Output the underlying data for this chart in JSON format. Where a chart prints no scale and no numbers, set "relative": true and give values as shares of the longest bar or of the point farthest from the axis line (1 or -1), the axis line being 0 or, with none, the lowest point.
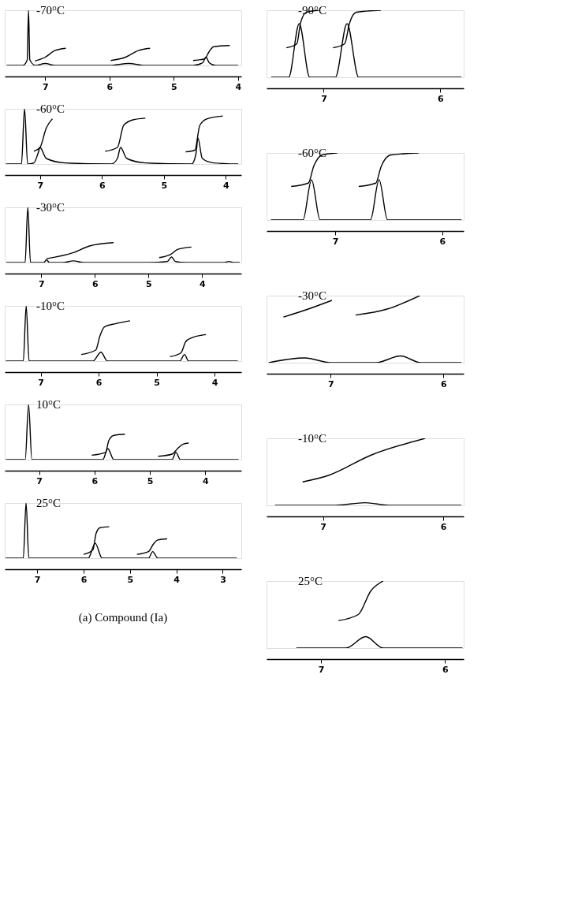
{
  "chart_data": [
    {
      "type": "line",
      "title": "-70°C",
      "relative": true,
      "xlim": [
        7.63,
        3.95
      ],
      "xticks": [
        7,
        6,
        5,
        4
      ],
      "grid": false,
      "legend": false,
      "line_style": "solid",
      "series": [
        {
          "color": "#000000",
          "x": [
            7.6,
            7.35,
            7.28,
            7.26,
            7.24,
            7.15,
            7.0,
            6.85,
            6.6,
            6.0,
            5.7,
            5.45,
            5.2,
            4.7,
            4.55,
            4.5,
            4.45,
            4.35,
            4.0
          ],
          "values": [
            0,
            0,
            0.1,
            1,
            0.1,
            0,
            0.035,
            0,
            0,
            0,
            0.035,
            0,
            0,
            0,
            0.05,
            0.15,
            0.05,
            0,
            0
          ]
        },
        {
          "color": "#000000",
          "x": [
            7.16,
            7.0,
            6.85,
            6.68
          ],
          "values": [
            0.08,
            0.15,
            0.27,
            0.31
          ]
        },
        {
          "color": "#000000",
          "x": [
            5.98,
            5.75,
            5.55,
            5.37
          ],
          "values": [
            0.09,
            0.15,
            0.27,
            0.31
          ]
        },
        {
          "color": "#000000",
          "x": [
            4.7,
            4.52,
            4.45,
            4.38,
            4.13
          ],
          "values": [
            0.09,
            0.12,
            0.25,
            0.34,
            0.36
          ]
        }
      ]
    },
    {
      "type": "line",
      "title": "-60°C",
      "relative": true,
      "xlim": [
        7.57,
        3.75
      ],
      "xticks": [
        7,
        6,
        5,
        4
      ],
      "grid": false,
      "legend": false,
      "line_style": "solid",
      "series": [
        {
          "color": "#000000",
          "x": [
            7.55,
            7.3,
            7.25,
            7.2,
            7.1,
            7.03,
            7.0,
            6.9,
            6.6,
            5.85,
            5.75,
            5.7,
            5.6,
            5.3,
            4.55,
            4.48,
            4.45,
            4.38,
            4.2,
            3.8
          ],
          "values": [
            0,
            0,
            1,
            0,
            0.02,
            0.2,
            0.3,
            0.1,
            0.02,
            0,
            0.1,
            0.3,
            0.1,
            0.02,
            0,
            0.2,
            0.47,
            0.1,
            0.02,
            0
          ]
        },
        {
          "color": "#000000",
          "x": [
            7.1,
            7.0,
            6.9,
            6.8
          ],
          "values": [
            0.23,
            0.3,
            0.65,
            0.82
          ]
        },
        {
          "color": "#000000",
          "x": [
            5.95,
            5.75,
            5.65,
            5.5,
            5.3
          ],
          "values": [
            0.23,
            0.3,
            0.7,
            0.8,
            0.83
          ]
        },
        {
          "color": "#000000",
          "x": [
            4.65,
            4.5,
            4.42,
            4.3,
            4.05
          ],
          "values": [
            0.22,
            0.25,
            0.7,
            0.82,
            0.87
          ]
        }
      ]
    },
    {
      "type": "line",
      "title": "-30°C",
      "relative": true,
      "xlim": [
        7.68,
        3.27
      ],
      "xticks": [
        7,
        6,
        5,
        4
      ],
      "grid": false,
      "legend": false,
      "line_style": "solid",
      "series": [
        {
          "color": "#000000",
          "x": [
            7.65,
            7.3,
            7.25,
            7.2,
            6.95,
            6.9,
            6.85,
            6.6,
            6.4,
            6.2,
            5.0,
            4.65,
            4.57,
            4.5,
            4.3,
            3.6,
            3.5,
            3.4,
            3.3
          ],
          "values": [
            0,
            0,
            1,
            0,
            0,
            0.05,
            0,
            0,
            0.03,
            0,
            0,
            0.02,
            0.1,
            0.02,
            0,
            0,
            0.02,
            0,
            0
          ]
        },
        {
          "color": "#000000",
          "x": [
            6.9,
            6.4,
            6.1,
            5.65
          ],
          "values": [
            0.07,
            0.18,
            0.3,
            0.36
          ]
        },
        {
          "color": "#000000",
          "x": [
            4.8,
            4.6,
            4.45,
            4.2
          ],
          "values": [
            0.09,
            0.14,
            0.24,
            0.28
          ]
        }
      ]
    },
    {
      "type": "line",
      "title": "-10°C",
      "relative": true,
      "xlim": [
        7.62,
        3.54
      ],
      "xticks": [
        7,
        6,
        5,
        4
      ],
      "grid": false,
      "legend": false,
      "line_style": "solid",
      "series": [
        {
          "color": "#000000",
          "x": [
            7.6,
            7.3,
            7.25,
            7.2,
            6.1,
            5.96,
            5.85,
            4.6,
            4.52,
            4.45,
            3.6
          ],
          "values": [
            0,
            0,
            1,
            0,
            0,
            0.16,
            0,
            0,
            0.12,
            0,
            0
          ]
        },
        {
          "color": "#000000",
          "x": [
            6.3,
            6.05,
            5.98,
            5.9,
            5.7,
            5.46
          ],
          "values": [
            0.12,
            0.2,
            0.45,
            0.62,
            0.68,
            0.73
          ]
        },
        {
          "color": "#000000",
          "x": [
            4.77,
            4.58,
            4.5,
            4.4,
            4.15
          ],
          "values": [
            0.08,
            0.15,
            0.35,
            0.42,
            0.48
          ]
        }
      ]
    },
    {
      "type": "line",
      "title": "10°C",
      "relative": true,
      "xlim": [
        7.62,
        3.35
      ],
      "xticks": [
        7,
        6,
        5,
        4
      ],
      "grid": false,
      "legend": false,
      "line_style": "solid",
      "series": [
        {
          "color": "#000000",
          "x": [
            7.6,
            7.25,
            7.19,
            7.13,
            5.85,
            5.76,
            5.65,
            4.6,
            4.53,
            4.45,
            3.4
          ],
          "values": [
            0,
            0,
            1,
            0,
            0,
            0.2,
            0,
            0,
            0.13,
            0,
            0
          ]
        },
        {
          "color": "#000000",
          "x": [
            6.05,
            5.8,
            5.74,
            5.65,
            5.45
          ],
          "values": [
            0.08,
            0.13,
            0.35,
            0.44,
            0.46
          ]
        },
        {
          "color": "#000000",
          "x": [
            4.85,
            4.6,
            4.5,
            4.4,
            4.3
          ],
          "values": [
            0.06,
            0.1,
            0.2,
            0.28,
            0.3
          ]
        }
      ]
    },
    {
      "type": "line",
      "title": "25°C",
      "relative": true,
      "xlim": [
        7.7,
        2.6
      ],
      "xticks": [
        7,
        6,
        5,
        4,
        3
      ],
      "grid": false,
      "legend": false,
      "line_style": "solid",
      "annotations": [
        "(a) Compound (Ia)"
      ],
      "series": [
        {
          "color": "#000000",
          "x": [
            7.68,
            7.3,
            7.24,
            7.18,
            5.9,
            5.75,
            5.6,
            4.6,
            4.51,
            4.4,
            2.7
          ],
          "values": [
            0,
            0,
            1,
            0,
            0,
            0.27,
            0,
            0,
            0.12,
            0,
            0
          ]
        },
        {
          "color": "#000000",
          "x": [
            6.0,
            5.8,
            5.73,
            5.65,
            5.45
          ],
          "values": [
            0.07,
            0.15,
            0.45,
            0.55,
            0.57
          ]
        },
        {
          "color": "#000000",
          "x": [
            4.85,
            4.6,
            4.5,
            4.4,
            4.2
          ],
          "values": [
            0.07,
            0.12,
            0.25,
            0.33,
            0.35
          ]
        }
      ]
    },
    {
      "type": "line",
      "title": "-90°C",
      "relative": true,
      "xlim": [
        7.49,
        5.8
      ],
      "xticks": [
        7,
        6
      ],
      "grid": false,
      "legend": false,
      "line_style": "solid",
      "series": [
        {
          "color": "#000000",
          "x": [
            7.45,
            7.3,
            7.21,
            7.12,
            6.9,
            6.8,
            6.7,
            5.82
          ],
          "values": [
            0,
            0,
            0.8,
            0,
            0,
            0.8,
            0,
            0
          ]
        },
        {
          "color": "#000000",
          "x": [
            7.32,
            7.23,
            7.2,
            7.15,
            7.04
          ],
          "values": [
            0.44,
            0.5,
            0.8,
            0.97,
            1
          ]
        },
        {
          "color": "#000000",
          "x": [
            6.92,
            6.82,
            6.78,
            6.72,
            6.51
          ],
          "values": [
            0.44,
            0.5,
            0.8,
            0.97,
            1
          ]
        }
      ]
    },
    {
      "type": "line",
      "title": "-60°C",
      "relative": true,
      "xlim": [
        7.64,
        5.8
      ],
      "xticks": [
        7,
        6
      ],
      "grid": false,
      "legend": false,
      "line_style": "solid",
      "series": [
        {
          "color": "#000000",
          "x": [
            7.6,
            7.3,
            7.22,
            7.14,
            6.67,
            6.59,
            6.51,
            5.82
          ],
          "values": [
            0,
            0,
            0.6,
            0,
            0,
            0.6,
            0,
            0
          ]
        },
        {
          "color": "#000000",
          "x": [
            7.41,
            7.25,
            7.2,
            7.12,
            6.98
          ],
          "values": [
            0.5,
            0.55,
            0.8,
            0.97,
            1
          ]
        },
        {
          "color": "#000000",
          "x": [
            6.78,
            6.62,
            6.57,
            6.48,
            6.22
          ],
          "values": [
            0.5,
            0.55,
            0.8,
            0.97,
            1
          ]
        }
      ]
    },
    {
      "type": "line",
      "title": "-30°C",
      "relative": true,
      "xlim": [
        7.57,
        5.82
      ],
      "xticks": [
        7,
        6
      ],
      "grid": false,
      "legend": false,
      "line_style": "solid",
      "series": [
        {
          "color": "#000000",
          "x": [
            7.55,
            7.23,
            7.0,
            6.6,
            6.38,
            6.2,
            5.84
          ],
          "values": [
            0,
            0.07,
            0,
            0,
            0.1,
            0,
            0
          ]
        },
        {
          "color": "#000000",
          "x": [
            7.42,
            7.2,
            6.99
          ],
          "values": [
            0.68,
            0.8,
            0.93
          ]
        },
        {
          "color": "#000000",
          "x": [
            6.78,
            6.5,
            6.21
          ],
          "values": [
            0.71,
            0.8,
            1
          ]
        }
      ]
    },
    {
      "type": "line",
      "title": "-10°C",
      "relative": true,
      "xlim": [
        7.47,
        5.83
      ],
      "xticks": [
        7,
        6
      ],
      "grid": false,
      "legend": false,
      "line_style": "solid",
      "series": [
        {
          "color": "#000000",
          "x": [
            7.4,
            6.9,
            6.65,
            6.45,
            5.85
          ],
          "values": [
            0,
            0,
            0.04,
            0,
            0
          ]
        },
        {
          "color": "#000000",
          "x": [
            7.17,
            6.95,
            6.6,
            6.15
          ],
          "values": [
            0.35,
            0.45,
            0.75,
            1
          ]
        }
      ]
    },
    {
      "type": "line",
      "title": "25°C",
      "relative": true,
      "xlim": [
        7.44,
        5.85
      ],
      "xticks": [
        7,
        6
      ],
      "grid": false,
      "legend": false,
      "line_style": "solid",
      "series": [
        {
          "color": "#000000",
          "x": [
            7.2,
            6.8,
            6.64,
            6.5,
            5.86
          ],
          "values": [
            0,
            0,
            0.17,
            0,
            0
          ]
        },
        {
          "color": "#000000",
          "x": [
            6.86,
            6.7,
            6.6,
            6.5
          ],
          "values": [
            0.41,
            0.5,
            0.85,
            1
          ]
        }
      ]
    }
  ]
}
